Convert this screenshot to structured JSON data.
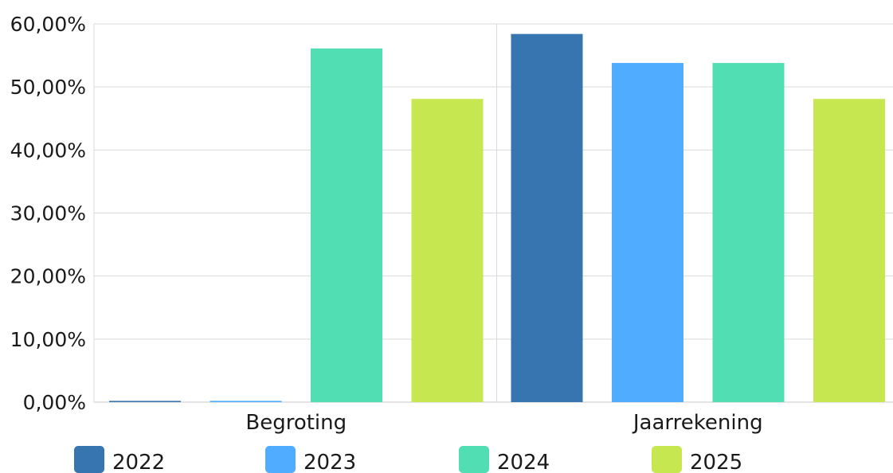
{
  "chart_data": {
    "type": "bar",
    "categories": [
      "Begroting",
      "Jaarrekening"
    ],
    "series": [
      {
        "name": "2022",
        "color": "#3775b0",
        "values": [
          0.2,
          58.4
        ]
      },
      {
        "name": "2023",
        "color": "#4facfe",
        "values": [
          0.2,
          53.8
        ]
      },
      {
        "name": "2024",
        "color": "#52deb3",
        "values": [
          56.1,
          53.8
        ]
      },
      {
        "name": "2025",
        "color": "#c7e751",
        "values": [
          48.1,
          48.1
        ]
      }
    ],
    "ylim": [
      0,
      60
    ],
    "yticks": [
      "0,00%",
      "10,00%",
      "20,00%",
      "30,00%",
      "40,00%",
      "50,00%",
      "60,00%"
    ],
    "grid": true,
    "legend": "bottom"
  }
}
